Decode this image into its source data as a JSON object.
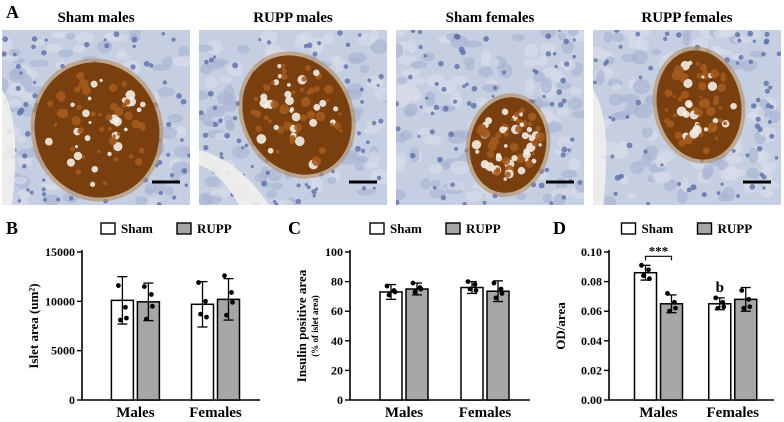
{
  "panel_letters": [
    "A",
    "B",
    "C",
    "D"
  ],
  "images": [
    {
      "title": "Sham males"
    },
    {
      "title": "RUPP males"
    },
    {
      "title": "Sham females"
    },
    {
      "title": "RUPP females"
    }
  ],
  "colors": {
    "sham_fill": "#ffffff",
    "rupp_fill": "#a6a6a6",
    "stain_brown": "#8a4a12",
    "tissue_blue": "#b9c4dc"
  },
  "chart_data": [
    {
      "type": "bar",
      "panel": "B",
      "categories": [
        "Males",
        "Females"
      ],
      "legend": [
        "Sham",
        "RUPP"
      ],
      "legend_position": "top",
      "ylabel": "Islet area (um²)",
      "ylim": [
        0,
        15000
      ],
      "yticks": [
        "0",
        "5000",
        "10000",
        "15000"
      ],
      "series": [
        {
          "name": "Sham",
          "values": [
            10100,
            9700
          ],
          "sd": [
            2400,
            2300
          ],
          "points": [
            [
              11600,
              9400,
              8100,
              8300
            ],
            [
              11900,
              10000,
              8700,
              8400
            ]
          ]
        },
        {
          "name": "RUPP",
          "values": [
            9950,
            10200
          ],
          "sd": [
            1900,
            2100
          ],
          "points": [
            [
              11500,
              10700,
              8200,
              9500
            ],
            [
              12600,
              10900,
              8600,
              9900
            ]
          ]
        }
      ]
    },
    {
      "type": "bar",
      "panel": "C",
      "categories": [
        "Males",
        "Females"
      ],
      "legend": [
        "Sham",
        "RUPP"
      ],
      "legend_position": "top",
      "ylabel": "Insulin positive area",
      "ylabel_sub": "(% of islet area)",
      "ylim": [
        0,
        100
      ],
      "yticks": [
        "0",
        "20",
        "40",
        "60",
        "80",
        "100"
      ],
      "series": [
        {
          "name": "Sham",
          "values": [
            73,
            76
          ],
          "sd": [
            5,
            4
          ],
          "points": [
            [
              77,
              74,
              71,
              73
            ],
            [
              80,
              78,
              75,
              74
            ]
          ]
        },
        {
          "name": "RUPP",
          "values": [
            75,
            73.5
          ],
          "sd": [
            4,
            7
          ],
          "points": [
            [
              79,
              76,
              73,
              75
            ],
            [
              79,
              75,
              69,
              72
            ]
          ]
        }
      ]
    },
    {
      "type": "bar",
      "panel": "D",
      "categories": [
        "Males",
        "Females"
      ],
      "legend": [
        "Sham",
        "RUPP"
      ],
      "legend_position": "top",
      "ylabel": "OD/area",
      "ylim": [
        0,
        0.1
      ],
      "yticks": [
        "0.00",
        "0.02",
        "0.04",
        "0.06",
        "0.08",
        "0.10"
      ],
      "series": [
        {
          "name": "Sham",
          "values": [
            0.086,
            0.065
          ],
          "sd": [
            0.005,
            0.004
          ],
          "points": [
            [
              0.091,
              0.088,
              0.084,
              0.082
            ],
            [
              0.069,
              0.066,
              0.062,
              0.063
            ]
          ]
        },
        {
          "name": "RUPP",
          "values": [
            0.065,
            0.068
          ],
          "sd": [
            0.006,
            0.008
          ],
          "points": [
            [
              0.072,
              0.066,
              0.06,
              0.062
            ],
            [
              0.074,
              0.068,
              0.062,
              0.063
            ]
          ]
        }
      ],
      "significance": "***",
      "annotation": "b"
    }
  ]
}
